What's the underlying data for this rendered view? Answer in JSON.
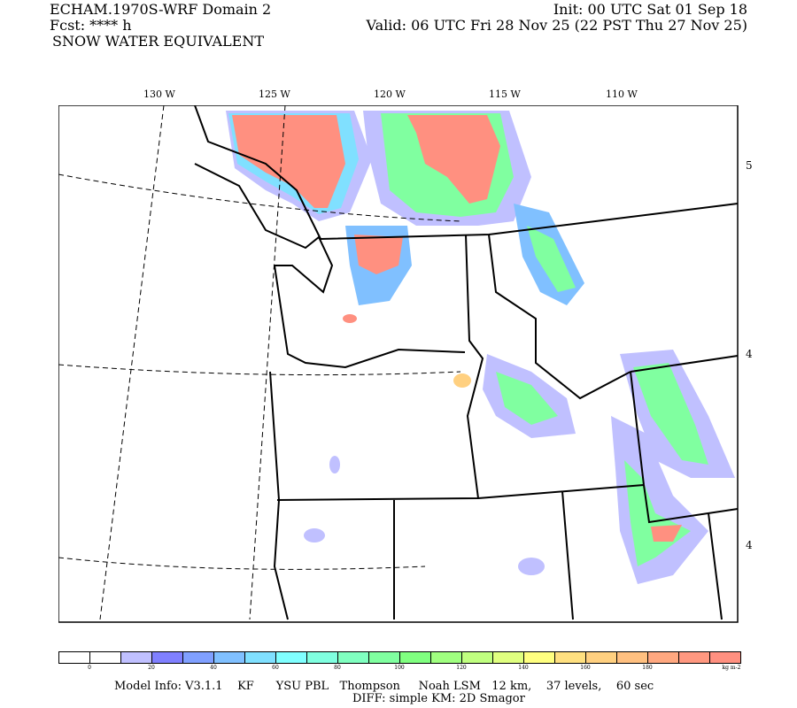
{
  "header": {
    "model_title": "ECHAM.1970S-WRF Domain 2",
    "fcst": "Fcst: **** h",
    "field": "SNOW WATER EQUIVALENT",
    "init": "Init: 00 UTC Sat 01 Sep 18",
    "valid": "Valid: 06 UTC Fri 28 Nov 25 (22 PST Thu 27 Nov 25)"
  },
  "map": {
    "lon_labels": [
      "130 W",
      "125 W",
      "120 W",
      "115 W",
      "110 W"
    ],
    "lat_labels": [
      "5",
      "4",
      "4"
    ]
  },
  "colorbar": {
    "colors": [
      "#ffffff",
      "#ffffff",
      "#c0c0ff",
      "#8080ff",
      "#80a0ff",
      "#80c0ff",
      "#80e0ff",
      "#80ffff",
      "#80ffe0",
      "#80ffc0",
      "#80ffa0",
      "#80ff80",
      "#a0ff80",
      "#c0ff80",
      "#e0ff80",
      "#ffff80",
      "#ffe080",
      "#ffd080",
      "#ffc080",
      "#ffa880",
      "#ff9880",
      "#ff9080"
    ],
    "labels": [
      "0",
      "20",
      "40",
      "60",
      "80",
      "100",
      "120",
      "140",
      "160",
      "180"
    ],
    "units": "kg m-2"
  },
  "footer": {
    "line1": "Model Info: V3.1.1    KF      YSU PBL   Thompson     Noah LSM   12 km,    37 levels,    60 sec",
    "line2": "DIFF: simple KM: 2D Smagor"
  }
}
